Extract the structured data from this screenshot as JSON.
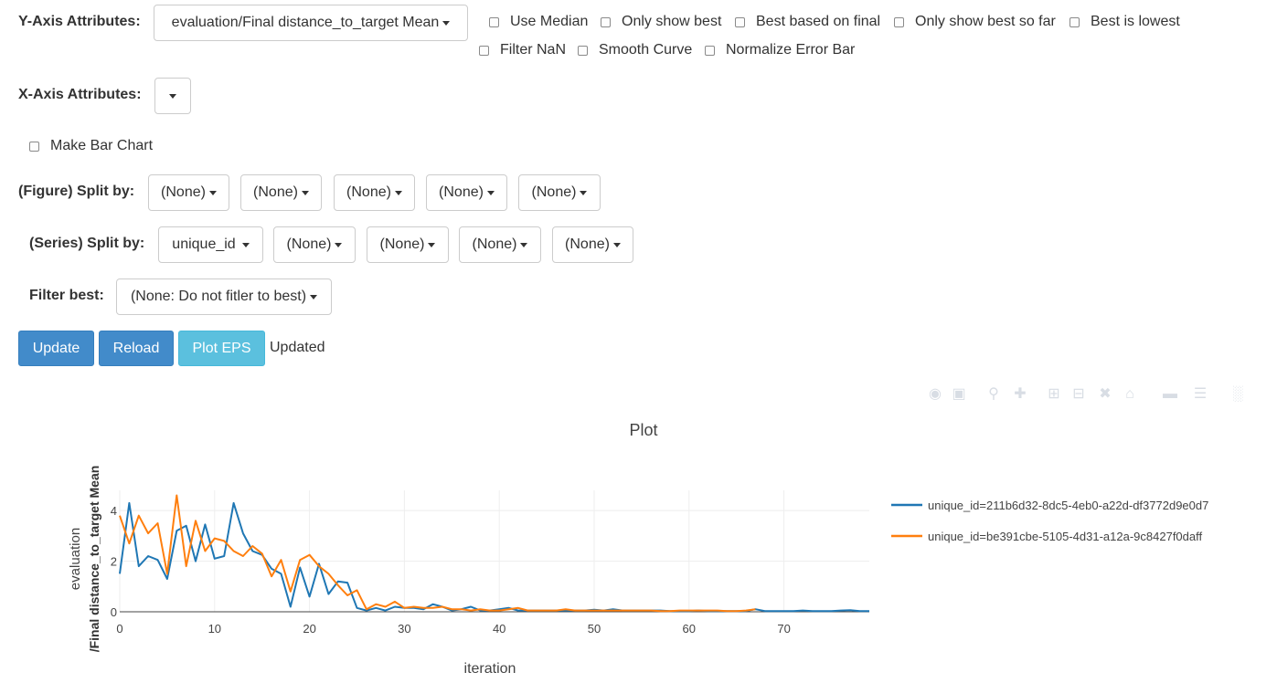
{
  "y_axis": {
    "label": "Y-Axis Attributes:",
    "selected": "evaluation/Final distance_to_target Mean",
    "options": [
      {
        "label": "Use Median"
      },
      {
        "label": "Only show best"
      },
      {
        "label": "Best based on final"
      },
      {
        "label": "Only show best so far"
      },
      {
        "label": "Best is lowest"
      },
      {
        "label": "Filter NaN"
      },
      {
        "label": "Smooth Curve"
      },
      {
        "label": "Normalize Error Bar"
      }
    ]
  },
  "x_axis": {
    "label": "X-Axis Attributes:",
    "selected": ""
  },
  "bar_chart": {
    "label": "Make Bar Chart"
  },
  "figure_split": {
    "label": "(Figure) Split by:",
    "selects": [
      "(None)",
      "(None)",
      "(None)",
      "(None)",
      "(None)"
    ]
  },
  "series_split": {
    "label": "(Series) Split by:",
    "selects": [
      "unique_id",
      "(None)",
      "(None)",
      "(None)",
      "(None)"
    ]
  },
  "filter_best": {
    "label": "Filter best:",
    "selected": "(None: Do not fitler to best)"
  },
  "buttons": {
    "update": "Update",
    "reload": "Reload",
    "plot_eps": "Plot EPS"
  },
  "status": "Updated",
  "modebar_icons": [
    "camera-icon",
    "save-icon",
    "zoom-icon",
    "pan-icon",
    "zoom-in-icon",
    "zoom-out-icon",
    "autoscale-icon",
    "reset-axes-icon",
    "spike-lines-icon",
    "compare-hover-icon",
    "closest-hover-icon",
    "plotly-logo-icon"
  ],
  "colors": {
    "series1": "#1f77b4",
    "series2": "#ff7f0e",
    "primary": "#428bca",
    "info": "#5bc0de"
  },
  "chart_data": {
    "type": "line",
    "title": "Plot",
    "xlabel": "iteration",
    "ylabel_lines": [
      "/Final distance_to_target Mean",
      "evaluation"
    ],
    "xlim": [
      0,
      79
    ],
    "ylim": [
      0,
      4.8
    ],
    "xticks": [
      0,
      10,
      20,
      30,
      40,
      50,
      60,
      70
    ],
    "yticks": [
      0,
      2,
      4
    ],
    "legend_position": "right",
    "series": [
      {
        "name": "unique_id=211b6d32-8dc5-4eb0-a22d-df3772d9e0d7",
        "color": "#1f77b4",
        "x": [
          0,
          1,
          2,
          3,
          4,
          5,
          6,
          7,
          8,
          9,
          10,
          11,
          12,
          13,
          14,
          15,
          16,
          17,
          18,
          19,
          20,
          21,
          22,
          23,
          24,
          25,
          26,
          27,
          28,
          29,
          30,
          31,
          32,
          33,
          34,
          35,
          36,
          37,
          38,
          39,
          40,
          41,
          42,
          43,
          44,
          45,
          46,
          47,
          48,
          49,
          50,
          51,
          52,
          53,
          54,
          55,
          56,
          57,
          58,
          59,
          60,
          61,
          62,
          63,
          64,
          65,
          66,
          67,
          68,
          69,
          70,
          71,
          72,
          73,
          74,
          75,
          76,
          77,
          78,
          79
        ],
        "y": [
          1.5,
          4.3,
          1.8,
          2.2,
          2.05,
          1.3,
          3.2,
          3.4,
          2.0,
          3.45,
          2.1,
          2.2,
          4.3,
          3.1,
          2.4,
          2.25,
          1.7,
          1.5,
          0.2,
          1.75,
          0.6,
          1.9,
          0.7,
          1.2,
          1.15,
          0.15,
          0.05,
          0.15,
          0.05,
          0.2,
          0.15,
          0.15,
          0.1,
          0.3,
          0.2,
          0.05,
          0.1,
          0.2,
          0.05,
          0.05,
          0.1,
          0.15,
          0.05,
          0.05,
          0.05,
          0.05,
          0.05,
          0.05,
          0.05,
          0.05,
          0.08,
          0.05,
          0.1,
          0.05,
          0.05,
          0.05,
          0.05,
          0.05,
          0.03,
          0.03,
          0.03,
          0.05,
          0.03,
          0.03,
          0.03,
          0.03,
          0.03,
          0.1,
          0.03,
          0.03,
          0.03,
          0.03,
          0.05,
          0.03,
          0.03,
          0.03,
          0.05,
          0.06,
          0.03,
          0.03
        ]
      },
      {
        "name": "unique_id=be391cbe-5105-4d31-a12a-9c8427f0daff",
        "color": "#ff7f0e",
        "x": [
          0,
          1,
          2,
          3,
          4,
          5,
          6,
          7,
          8,
          9,
          10,
          11,
          12,
          13,
          14,
          15,
          16,
          17,
          18,
          19,
          20,
          21,
          22,
          23,
          24,
          25,
          26,
          27,
          28,
          29,
          30,
          31,
          32,
          33,
          34,
          35,
          36,
          37,
          38,
          39,
          40,
          41,
          42,
          43,
          44,
          45,
          46,
          47,
          48,
          49,
          50,
          51,
          52,
          53,
          54,
          55,
          56,
          57,
          58,
          59,
          60,
          61,
          62,
          63,
          64,
          65,
          66,
          67
        ],
        "y": [
          3.8,
          2.7,
          3.8,
          3.1,
          3.5,
          1.5,
          4.6,
          1.8,
          3.6,
          2.4,
          2.9,
          2.8,
          2.4,
          2.2,
          2.6,
          2.3,
          1.4,
          2.05,
          0.8,
          2.05,
          2.25,
          1.8,
          1.5,
          1.05,
          0.65,
          0.85,
          0.1,
          0.3,
          0.2,
          0.4,
          0.15,
          0.2,
          0.15,
          0.15,
          0.2,
          0.1,
          0.1,
          0.05,
          0.1,
          0.05,
          0.05,
          0.1,
          0.15,
          0.05,
          0.05,
          0.05,
          0.05,
          0.1,
          0.05,
          0.05,
          0.05,
          0.05,
          0.05,
          0.05,
          0.05,
          0.05,
          0.05,
          0.03,
          0.03,
          0.05,
          0.05,
          0.05,
          0.05,
          0.05,
          0.03,
          0.03,
          0.05,
          0.1
        ]
      }
    ]
  }
}
